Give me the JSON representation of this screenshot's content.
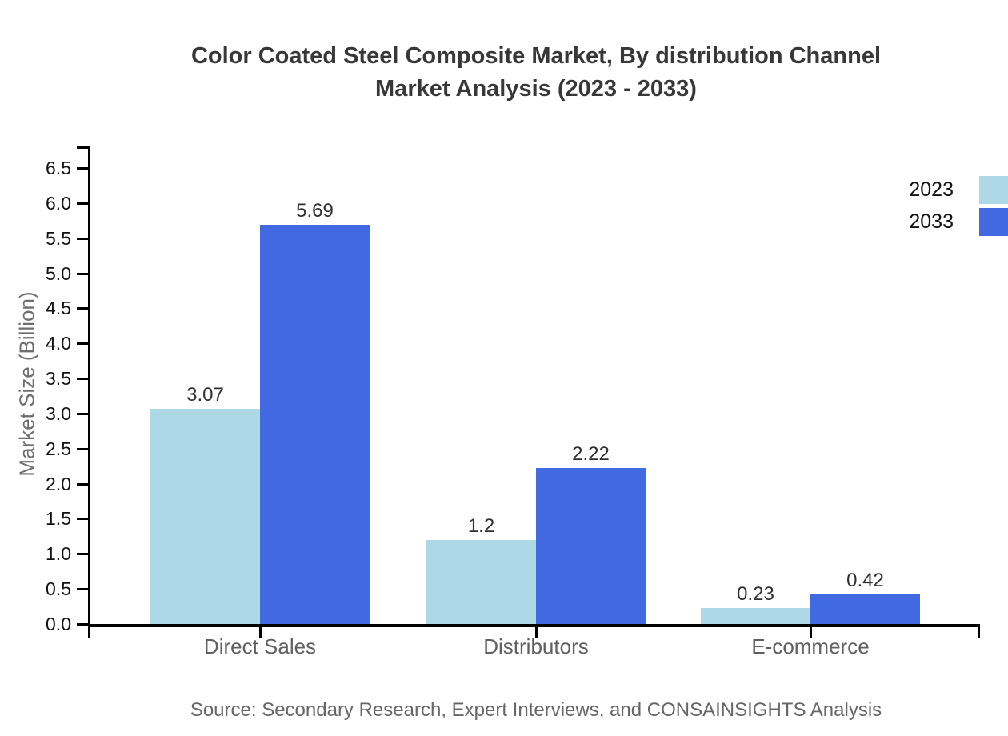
{
  "title": {
    "line1": "Color Coated Steel Composite Market, By distribution Channel",
    "line2": "Market Analysis (2023 - 2033)"
  },
  "source": "Source: Secondary Research, Expert Interviews, and CONSAINSIGHTS Analysis",
  "colors": {
    "series_2023": "#ADD8E6",
    "series_2033": "#4169E1",
    "axis": "#000000",
    "title_text": "#383838",
    "muted_text": "#666666"
  },
  "chart_data": {
    "type": "bar",
    "title": "Color Coated Steel Composite Market, By distribution Channel Market Analysis (2023 - 2033)",
    "categories": [
      "Direct Sales",
      "Distributors",
      "E-commerce"
    ],
    "series": [
      {
        "name": "2023",
        "color": "#ADD8E6",
        "values": [
          3.07,
          1.2,
          0.23
        ],
        "labels": [
          "3.07",
          "1.2",
          "0.23"
        ]
      },
      {
        "name": "2033",
        "color": "#4169E1",
        "values": [
          5.69,
          2.22,
          0.42
        ],
        "labels": [
          "5.69",
          "2.22",
          "0.42"
        ]
      }
    ],
    "xlabel": "",
    "ylabel": "Market Size (Billion)",
    "ylim": [
      0,
      6.5
    ],
    "y_tick_step": 0.5,
    "y_ticks": [
      "0.0",
      "0.5",
      "1.0",
      "1.5",
      "2.0",
      "2.5",
      "3.0",
      "3.5",
      "4.0",
      "4.5",
      "5.0",
      "5.5",
      "6.0",
      "6.5"
    ],
    "grid": false,
    "legend_position": "right-edge",
    "source_note": "Source: Secondary Research, Expert Interviews, and CONSAINSIGHTS Analysis"
  }
}
